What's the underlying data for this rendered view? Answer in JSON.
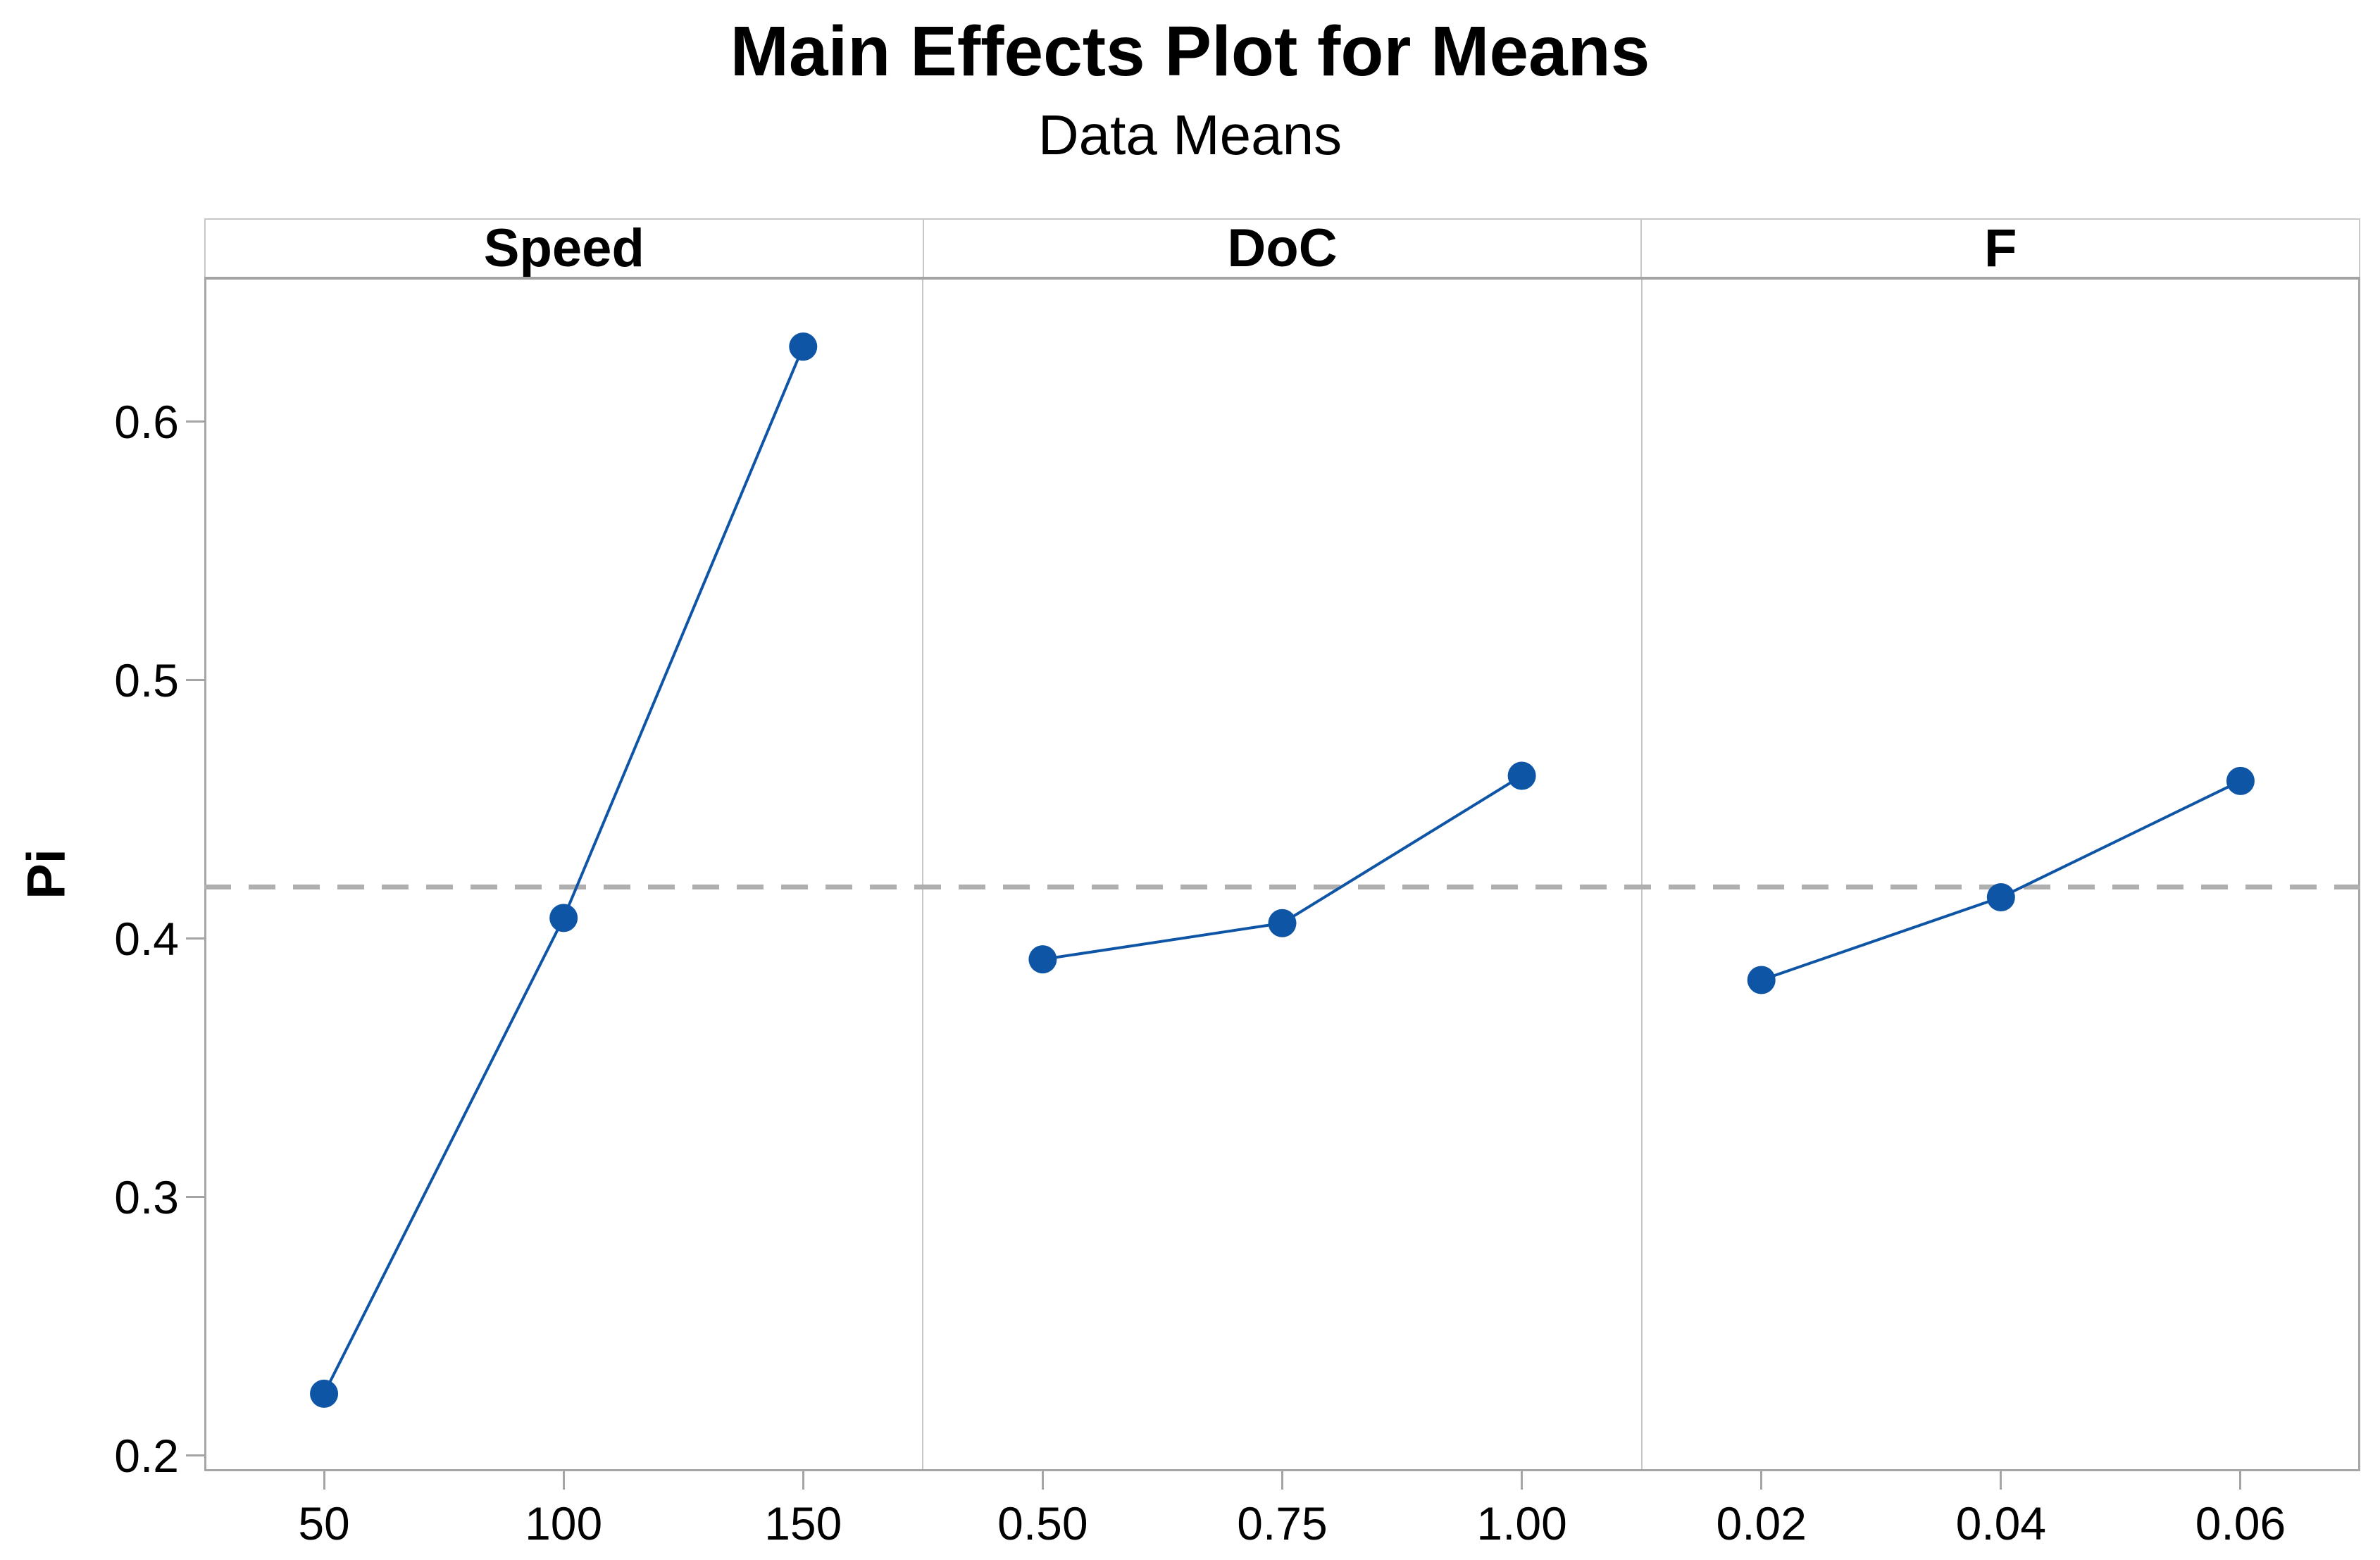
{
  "chart_data": {
    "type": "line",
    "title": "Main Effects Plot for Means",
    "subtitle": "Data Means",
    "ylabel": "Pi",
    "ylim": [
      0.194,
      0.656
    ],
    "yticks": [
      0.2,
      0.3,
      0.4,
      0.5,
      0.6
    ],
    "ytick_labels": [
      "0.2",
      "0.3",
      "0.4",
      "0.5",
      "0.6"
    ],
    "grand_mean": 0.42,
    "mean_line_style": "dashed",
    "grid": false,
    "legend_position": "none",
    "panels": [
      {
        "label": "Speed",
        "categories": [
          "50",
          "100",
          "150"
        ],
        "values": [
          0.224,
          0.408,
          0.629
        ]
      },
      {
        "label": "DoC",
        "categories": [
          "0.50",
          "0.75",
          "1.00"
        ],
        "values": [
          0.392,
          0.406,
          0.463
        ]
      },
      {
        "label": "F",
        "categories": [
          "0.02",
          "0.04",
          "0.06"
        ],
        "values": [
          0.384,
          0.416,
          0.461
        ]
      }
    ],
    "colors": {
      "point_blue": "#0E55A6",
      "line_blue": "#0E55A6",
      "mean_line_gray": "#AFAFAF",
      "axis_gray": "#A6A6A6",
      "panel_border_gray": "#C8C8C8",
      "tick_gray": "#A5A5A5",
      "text": "#000000"
    }
  }
}
